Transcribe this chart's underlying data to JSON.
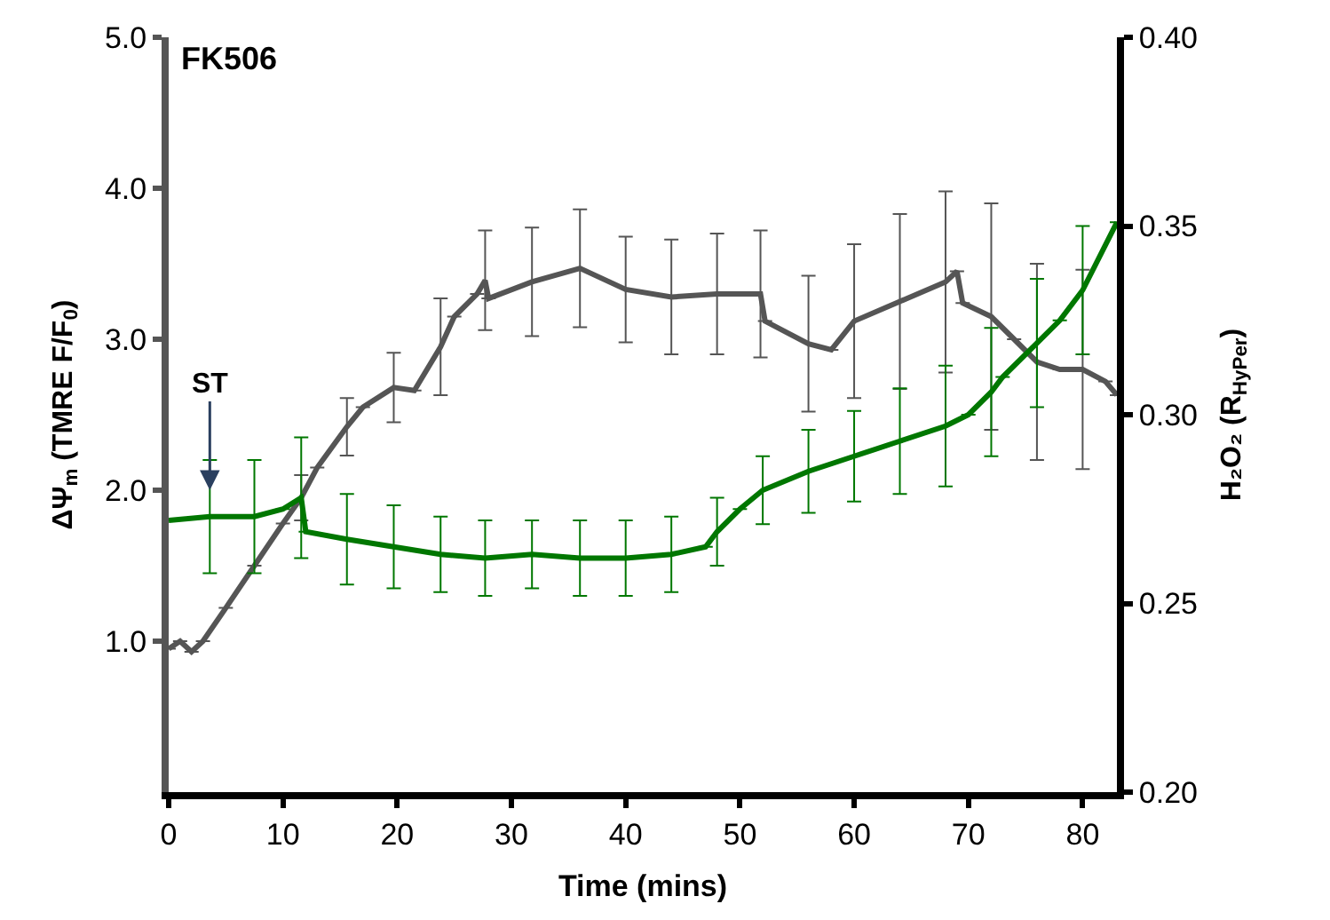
{
  "chart_data": {
    "type": "line",
    "title": "FK506",
    "xlabel": "Time (mins)",
    "ylabel": "ΔΨ$_{m}$ (TMRE F/F$_{0}$)",
    "y2label": "H₂O₂ (R$_{HyPer}$)",
    "xlim": [
      0,
      83
    ],
    "xticks": [
      0,
      10,
      20,
      30,
      40,
      50,
      60,
      70,
      80
    ],
    "ylim": [
      0,
      5.0
    ],
    "yticks": [
      {
        "value": 1,
        "label": "1.0"
      },
      {
        "value": 2,
        "label": "2.0"
      },
      {
        "value": 3,
        "label": "3.0"
      },
      {
        "value": 4,
        "label": "4.0"
      },
      {
        "value": 5,
        "label": "5.0"
      }
    ],
    "y2lim": [
      0.2,
      0.4
    ],
    "y2ticks": [
      {
        "value": 0.2,
        "label": "0.20"
      },
      {
        "value": 0.25,
        "label": "0.25"
      },
      {
        "value": 0.3,
        "label": "0.30"
      },
      {
        "value": 0.35,
        "label": "0.35"
      },
      {
        "value": 0.4,
        "label": "0.40"
      }
    ],
    "legend": false,
    "marker": "none",
    "line_style": "solid",
    "series": [
      {
        "color": "#555555",
        "x": [
          0,
          1,
          2,
          3,
          5,
          7.5,
          10,
          11.6,
          13,
          15.6,
          17,
          19.7,
          21.5,
          23.8,
          25,
          27,
          27.7,
          28,
          31.8,
          36,
          40,
          44,
          48,
          51.8,
          52.2,
          56,
          58,
          60,
          64,
          68,
          69,
          69.5,
          72,
          74,
          76,
          78,
          80,
          82,
          83
        ],
        "values": [
          0.95,
          1.0,
          0.93,
          1.0,
          1.22,
          1.5,
          1.78,
          1.95,
          2.15,
          2.42,
          2.55,
          2.68,
          2.66,
          2.95,
          3.15,
          3.3,
          3.39,
          3.27,
          3.38,
          3.47,
          3.33,
          3.28,
          3.3,
          3.3,
          3.12,
          2.97,
          2.93,
          3.12,
          3.25,
          3.38,
          3.45,
          3.24,
          3.15,
          3.0,
          2.85,
          2.8,
          2.8,
          2.72,
          2.63
        ],
        "errors": [
          null,
          null,
          null,
          null,
          null,
          null,
          null,
          0.15,
          null,
          0.19,
          null,
          0.23,
          null,
          0.32,
          null,
          null,
          0.33,
          null,
          0.36,
          0.39,
          0.35,
          0.38,
          0.4,
          0.42,
          null,
          0.45,
          null,
          0.51,
          0.58,
          0.6,
          null,
          null,
          0.75,
          null,
          0.65,
          null,
          0.66,
          null,
          null
        ]
      },
      {
        "color": "#007700",
        "axis": "y2",
        "x": [
          0,
          3.6,
          7.5,
          10,
          11.6,
          12,
          15.6,
          19.7,
          23.8,
          27.7,
          31.8,
          36,
          40,
          44,
          47,
          48,
          50,
          52,
          56,
          60,
          64,
          68,
          70,
          72,
          73,
          76,
          78,
          80,
          83
        ],
        "values": [
          0.272,
          0.273,
          0.273,
          0.275,
          0.278,
          0.269,
          0.267,
          0.265,
          0.263,
          0.262,
          0.263,
          0.262,
          0.262,
          0.263,
          0.265,
          0.269,
          0.275,
          0.28,
          0.285,
          0.289,
          0.293,
          0.297,
          0.3,
          0.306,
          0.31,
          0.319,
          0.325,
          0.333,
          0.351
        ],
        "errors": [
          null,
          0.015,
          0.015,
          null,
          0.016,
          null,
          0.012,
          0.011,
          0.01,
          0.01,
          0.009,
          0.01,
          0.01,
          0.01,
          null,
          0.009,
          null,
          0.009,
          0.011,
          0.012,
          0.014,
          0.016,
          null,
          0.017,
          null,
          0.017,
          null,
          0.017,
          null
        ]
      }
    ],
    "annotations": [
      {
        "text": "ST",
        "x": 3.6,
        "y": 2.0
      }
    ]
  }
}
